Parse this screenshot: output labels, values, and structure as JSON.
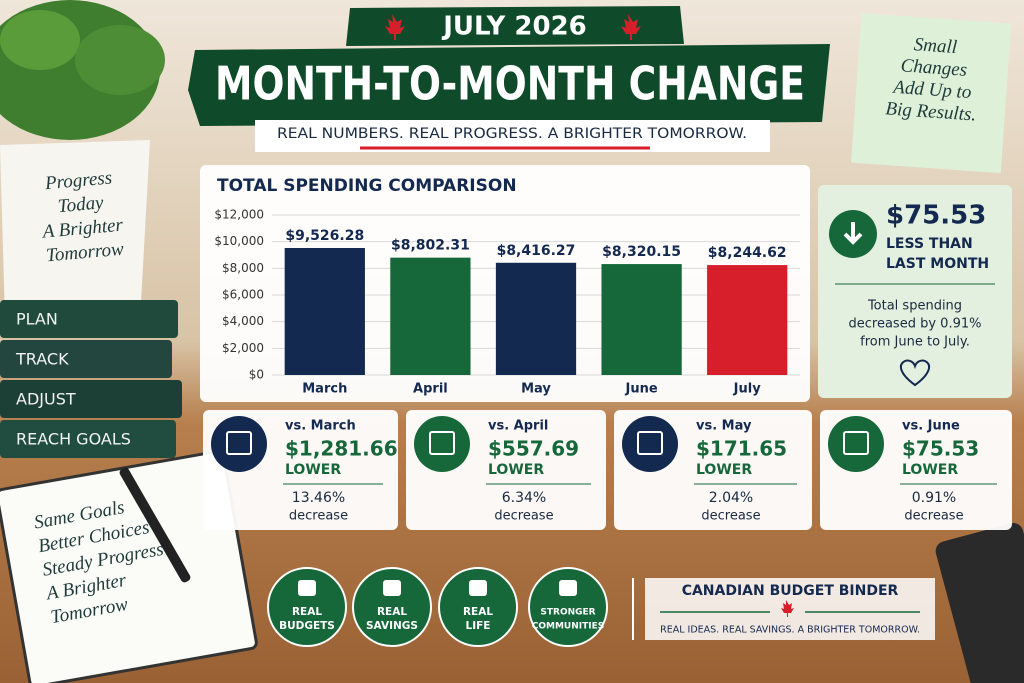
{
  "header": {
    "kicker": "JULY 2026",
    "title": "MONTH-TO-MONTH CHANGE",
    "tagline": "REAL NUMBERS. REAL PROGRESS. A BRIGHTER TOMORROW."
  },
  "sticky_note": [
    "Small",
    "Changes",
    "Add Up to",
    "Big Results."
  ],
  "plant_pot": [
    "Progress",
    "Today",
    "A Brighter",
    "Tomorrow"
  ],
  "books": [
    "PLAN",
    "TRACK",
    "ADJUST",
    "REACH GOALS"
  ],
  "notebook": [
    "Same Goals",
    "Better Choices",
    "Steady Progress",
    "A Brighter",
    "Tomorrow"
  ],
  "chart_data": {
    "type": "bar",
    "title": "TOTAL SPENDING COMPARISON",
    "categories": [
      "March",
      "April",
      "May",
      "June",
      "July"
    ],
    "values": [
      9526.28,
      8802.31,
      8416.27,
      8320.15,
      8244.62
    ],
    "value_labels": [
      "$9,526.28",
      "$8,802.31",
      "$8,416.27",
      "$8,320.15",
      "$8,244.62"
    ],
    "colors": [
      "#14294f",
      "#16683a",
      "#14294f",
      "#16683a",
      "#d71f2b"
    ],
    "ylim": [
      0,
      12000
    ],
    "yticks": [
      {
        "value": 0,
        "label": "$0"
      },
      {
        "value": 2000,
        "label": "$2,000"
      },
      {
        "value": 4000,
        "label": "$4,000"
      },
      {
        "value": 6000,
        "label": "$6,000"
      },
      {
        "value": 8000,
        "label": "$8,000"
      },
      {
        "value": 10000,
        "label": "$10,000"
      },
      {
        "value": 12000,
        "label": "$12,000"
      }
    ],
    "grid": true
  },
  "summary": {
    "amount": "$75.53",
    "headline": [
      "LESS THAN",
      "LAST MONTH"
    ],
    "description": [
      "Total spending",
      "decreased by 0.91%",
      "from June to July."
    ]
  },
  "comparisons": [
    {
      "label": "vs. March",
      "amount": "$1,281.66",
      "direction": "LOWER",
      "percent": "13.46%",
      "change": "decrease"
    },
    {
      "label": "vs. April",
      "amount": "$557.69",
      "direction": "LOWER",
      "percent": "6.34%",
      "change": "decrease"
    },
    {
      "label": "vs. May",
      "amount": "$171.65",
      "direction": "LOWER",
      "percent": "2.04%",
      "change": "decrease"
    },
    {
      "label": "vs. June",
      "amount": "$75.53",
      "direction": "LOWER",
      "percent": "0.91%",
      "change": "decrease"
    }
  ],
  "badges": [
    [
      "REAL",
      "BUDGETS"
    ],
    [
      "REAL",
      "SAVINGS"
    ],
    [
      "REAL",
      "LIFE"
    ],
    [
      "STRONGER",
      "COMMUNITIES"
    ]
  ],
  "brand": {
    "name": "CANADIAN BUDGET BINDER",
    "tagline": "REAL IDEAS. REAL SAVINGS. A BRIGHTER TOMORROW."
  }
}
